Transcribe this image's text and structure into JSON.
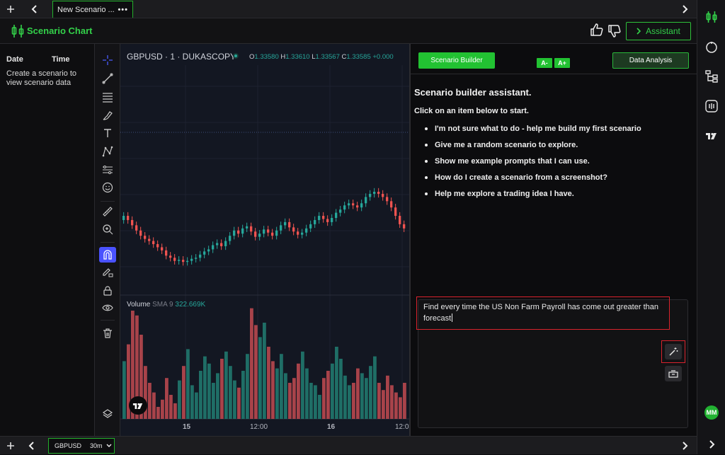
{
  "tabbar": {
    "tab_title": "New Scenario ...",
    "tab_menu": "•••"
  },
  "header": {
    "title": "Scenario Chart",
    "assistant_label": "Assistant"
  },
  "data_panel": {
    "col_date": "Date",
    "col_time": "Time",
    "empty_text": "Create a scenario to view scenario data"
  },
  "chart": {
    "symbol": "GBPUSD · 1 · DUKASCOPY",
    "ohlc": {
      "o_label": "O",
      "o": "1.33580",
      "h_label": "H",
      "h": "1.33610",
      "l_label": "L",
      "l": "1.33567",
      "c_label": "C",
      "c": "1.33585",
      "chg": "+0.000"
    },
    "volume": {
      "label": "Volume",
      "sma": "SMA 9",
      "value": "322.669K"
    },
    "x_labels": [
      "15",
      "12:00",
      "16",
      "12:0"
    ],
    "colors": {
      "up": "#26a69a",
      "down": "#ef5350"
    }
  },
  "chart_data": {
    "type": "candlestick",
    "series": [
      {
        "name": "GBPUSD · 1 · DUKASCOPY",
        "values": [
          0.52,
          0.48,
          0.43,
          0.38,
          0.33,
          0.3,
          0.28,
          0.25,
          0.22,
          0.19,
          0.14,
          0.12,
          0.09,
          0.1,
          0.08,
          0.09,
          0.11,
          0.12,
          0.15,
          0.18,
          0.2,
          0.24,
          0.26,
          0.23,
          0.28,
          0.33,
          0.38,
          0.35,
          0.4,
          0.42,
          0.37,
          0.32,
          0.35,
          0.39,
          0.36,
          0.33,
          0.38,
          0.43,
          0.46,
          0.41,
          0.37,
          0.34,
          0.36,
          0.4,
          0.44,
          0.48,
          0.52,
          0.49,
          0.46,
          0.5,
          0.55,
          0.58,
          0.62,
          0.64,
          0.62,
          0.6,
          0.64,
          0.7,
          0.73,
          0.75,
          0.73,
          0.7,
          0.66,
          0.6,
          0.52,
          0.44,
          0.4
        ]
      },
      {
        "name": "Volume",
        "values": [
          0.48,
          0.62,
          0.9,
          0.86,
          0.7,
          0.44,
          0.3,
          0.22,
          0.1,
          0.16,
          0.34,
          0.2,
          0.13,
          0.32,
          0.44,
          0.58,
          0.28,
          0.22,
          0.4,
          0.52,
          0.46,
          0.3,
          0.38,
          0.5,
          0.56,
          0.44,
          0.32,
          0.26,
          0.4,
          0.54,
          0.92,
          0.78,
          0.68,
          0.8,
          0.6,
          0.48,
          0.42,
          0.54,
          0.38,
          0.3,
          0.34,
          0.46,
          0.56,
          0.42,
          0.3,
          0.28,
          0.2,
          0.34,
          0.4,
          0.46,
          0.6,
          0.5,
          0.36,
          0.28,
          0.3,
          0.42,
          0.38,
          0.34,
          0.44,
          0.52,
          0.3,
          0.24,
          0.36,
          0.28,
          0.22,
          0.18,
          0.3
        ]
      }
    ],
    "xlabel": "",
    "ylabel": ""
  },
  "builder": {
    "btn_builder": "Scenario Builder",
    "btn_font_down": "A-",
    "btn_font_up": "A+",
    "btn_analysis": "Data Analysis",
    "title": "Scenario builder assistant.",
    "subtitle": "Click on an item below to start.",
    "prompts": [
      "I'm not sure what to do - help me build my first scenario",
      "Give me a random scenario to explore.",
      "Show me example prompts that I can use.",
      "How do I create a scenario from a screenshot?",
      "Help me explore a trading idea I have."
    ],
    "input_value": "Find every time the US Non Farm Payroll has come out greater than forecast"
  },
  "rail": {
    "avatar": "MM"
  },
  "bottombar": {
    "symbol": "GBPUSD",
    "interval": "30m"
  },
  "icons": [
    "plus-icon",
    "chevron-left-icon",
    "chevron-right-icon",
    "candle-logo-icon",
    "thumbs-up-icon",
    "thumbs-down-icon",
    "crosshair-icon",
    "trend-line-icon",
    "fib-icon",
    "brush-icon",
    "text-icon",
    "pattern-icon",
    "measure-icon",
    "emoji-icon",
    "ruler-icon",
    "zoom-icon",
    "magnet-icon",
    "lock-drawing-icon",
    "lock-icon",
    "eye-icon",
    "trash-icon",
    "layers-icon",
    "tradingview-logo-icon",
    "magic-wand-icon",
    "clear-icon"
  ]
}
